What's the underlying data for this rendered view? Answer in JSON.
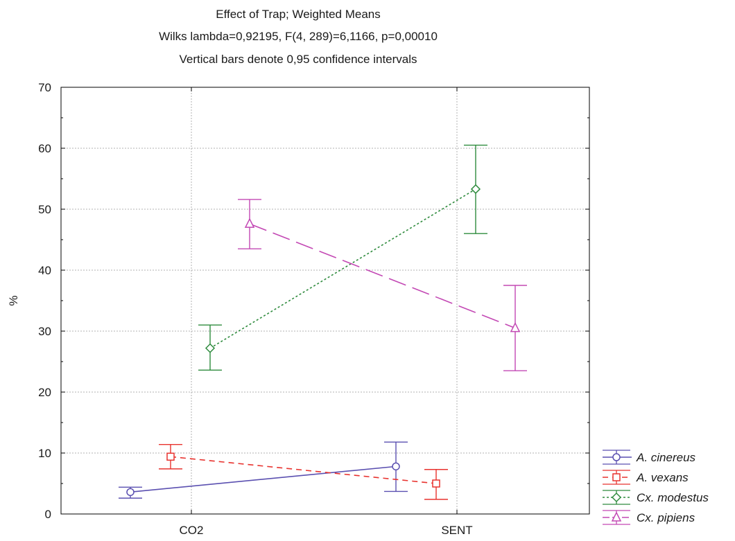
{
  "chart_data": {
    "type": "line",
    "title": "Effect of Trap; Weighted Means",
    "subtitle_lines": [
      "Wilks lambda=0,92195, F(4, 289)=6,1166, p=0,00010",
      "Vertical bars denote 0,95 confidence intervals"
    ],
    "xlabel": "",
    "ylabel": "%",
    "categories": [
      "CO2",
      "SENT"
    ],
    "ylim": [
      0,
      70
    ],
    "yticks": [
      0,
      10,
      20,
      30,
      40,
      50,
      60,
      70
    ],
    "grid": true,
    "legend_position": "right-bottom",
    "series": [
      {
        "name": "A. cinereus",
        "color": "#5a4fb0",
        "marker": "circle",
        "line_style": "solid",
        "values": [
          3.6,
          7.8
        ],
        "ci_low": [
          2.6,
          3.7
        ],
        "ci_high": [
          4.4,
          11.8
        ]
      },
      {
        "name": "A. vexans",
        "color": "#e8322e",
        "marker": "square",
        "line_style": "dashed",
        "values": [
          9.4,
          5.0
        ],
        "ci_low": [
          7.4,
          2.4
        ],
        "ci_high": [
          11.4,
          7.3
        ]
      },
      {
        "name": "Cx. modestus",
        "color": "#2e8b3d",
        "marker": "diamond",
        "line_style": "dotted",
        "values": [
          27.2,
          53.3
        ],
        "ci_low": [
          23.6,
          46.0
        ],
        "ci_high": [
          31.0,
          60.5
        ]
      },
      {
        "name": "Cx. pipiens",
        "color": "#c348b4",
        "marker": "triangle",
        "line_style": "long-dash",
        "values": [
          47.6,
          30.5
        ],
        "ci_low": [
          43.5,
          23.5
        ],
        "ci_high": [
          51.6,
          37.5
        ]
      }
    ]
  }
}
